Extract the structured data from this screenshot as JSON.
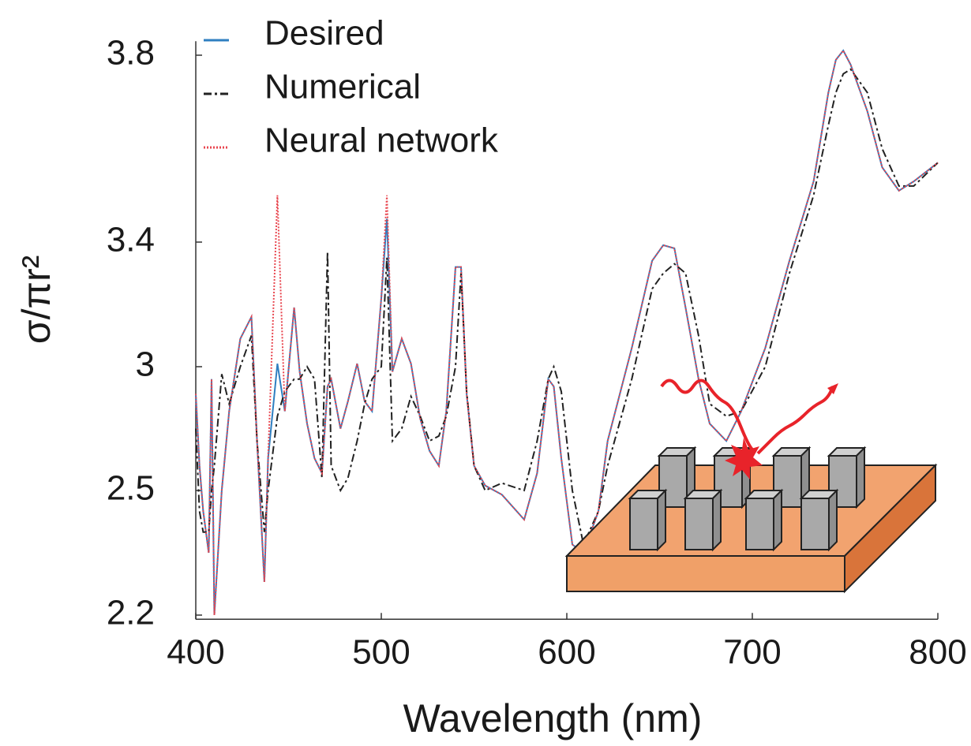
{
  "chart_data": {
    "type": "line",
    "x_label": "Wavelength (nm)",
    "y_label": "σ/πr²",
    "xlim": [
      400,
      800
    ],
    "xticks": [
      400,
      500,
      600,
      700,
      800
    ],
    "ylim": [
      2.19,
      3.83
    ],
    "yticks": [
      2.2,
      2.5,
      3,
      3.4,
      3.8
    ],
    "legend": "top-left",
    "x": [
      400,
      402,
      404,
      407,
      408.5,
      410,
      414,
      418,
      424,
      430,
      433,
      437,
      439,
      444,
      448,
      453,
      456,
      460,
      464,
      468,
      471,
      473,
      478,
      482,
      487,
      491,
      495,
      500,
      503,
      506,
      511,
      516,
      521,
      526,
      531,
      535,
      540,
      543,
      546,
      550,
      556,
      565,
      577,
      584,
      590,
      593,
      597,
      603,
      609,
      617,
      622,
      635,
      646,
      652,
      658,
      664,
      671,
      677,
      686,
      694,
      707,
      720,
      733,
      741,
      745,
      749,
      753,
      762,
      770,
      779,
      787,
      800
    ],
    "series": [
      {
        "name": "Desired",
        "color": "#2f7fc1",
        "dash": "none",
        "values": [
          2.89,
          2.6,
          2.45,
          2.35,
          2.95,
          2.2,
          2.5,
          2.82,
          3.09,
          3.16,
          2.7,
          2.28,
          2.63,
          3.01,
          2.82,
          3.19,
          2.98,
          2.77,
          2.63,
          2.57,
          2.92,
          2.95,
          2.75,
          2.86,
          3.01,
          2.86,
          2.82,
          3.22,
          3.45,
          2.98,
          3.09,
          3.01,
          2.79,
          2.66,
          2.6,
          2.82,
          3.32,
          3.32,
          2.89,
          2.6,
          2.52,
          2.49,
          2.43,
          2.57,
          2.95,
          2.92,
          2.63,
          2.37,
          2.35,
          2.45,
          2.7,
          3.06,
          3.34,
          3.39,
          3.38,
          3.19,
          2.95,
          2.77,
          2.7,
          2.82,
          3.06,
          3.34,
          3.53,
          3.72,
          3.79,
          3.81,
          3.78,
          3.68,
          3.56,
          3.51,
          3.53,
          3.57
        ]
      },
      {
        "name": "Numerical",
        "color": "#222222",
        "dash": "10 4 3 4",
        "values": [
          2.75,
          2.45,
          2.4,
          2.4,
          2.5,
          2.6,
          2.97,
          2.85,
          3.0,
          3.1,
          2.7,
          2.4,
          2.5,
          2.8,
          2.9,
          2.95,
          2.95,
          3.0,
          2.95,
          2.55,
          3.37,
          2.6,
          2.5,
          2.55,
          2.7,
          2.85,
          2.95,
          3.0,
          3.35,
          2.7,
          2.75,
          2.88,
          2.8,
          2.7,
          2.72,
          2.8,
          3.0,
          3.3,
          2.9,
          2.6,
          2.5,
          2.53,
          2.5,
          2.7,
          2.95,
          3.0,
          2.9,
          2.5,
          2.37,
          2.45,
          2.6,
          2.95,
          3.25,
          3.3,
          3.33,
          3.3,
          3.1,
          2.85,
          2.8,
          2.82,
          3.0,
          3.3,
          3.5,
          3.65,
          3.72,
          3.76,
          3.77,
          3.72,
          3.6,
          3.52,
          3.52,
          3.57
        ]
      },
      {
        "name": "Neural network",
        "color": "#e8464f",
        "dash": "2 2",
        "values": [
          2.89,
          2.6,
          2.45,
          2.35,
          2.95,
          2.2,
          2.5,
          2.82,
          3.09,
          3.16,
          2.7,
          2.28,
          2.63,
          3.5,
          2.82,
          3.19,
          2.98,
          2.77,
          2.63,
          2.57,
          2.92,
          2.95,
          2.75,
          2.86,
          3.01,
          2.86,
          2.82,
          3.22,
          3.5,
          2.98,
          3.09,
          3.01,
          2.79,
          2.66,
          2.6,
          2.82,
          3.32,
          3.32,
          2.89,
          2.6,
          2.52,
          2.49,
          2.43,
          2.57,
          2.95,
          2.92,
          2.63,
          2.37,
          2.35,
          2.45,
          2.7,
          3.06,
          3.34,
          3.39,
          3.38,
          3.19,
          2.95,
          2.77,
          2.7,
          2.82,
          3.06,
          3.34,
          3.53,
          3.72,
          3.79,
          3.81,
          3.78,
          3.68,
          3.56,
          3.51,
          3.53,
          3.57
        ]
      }
    ]
  }
}
